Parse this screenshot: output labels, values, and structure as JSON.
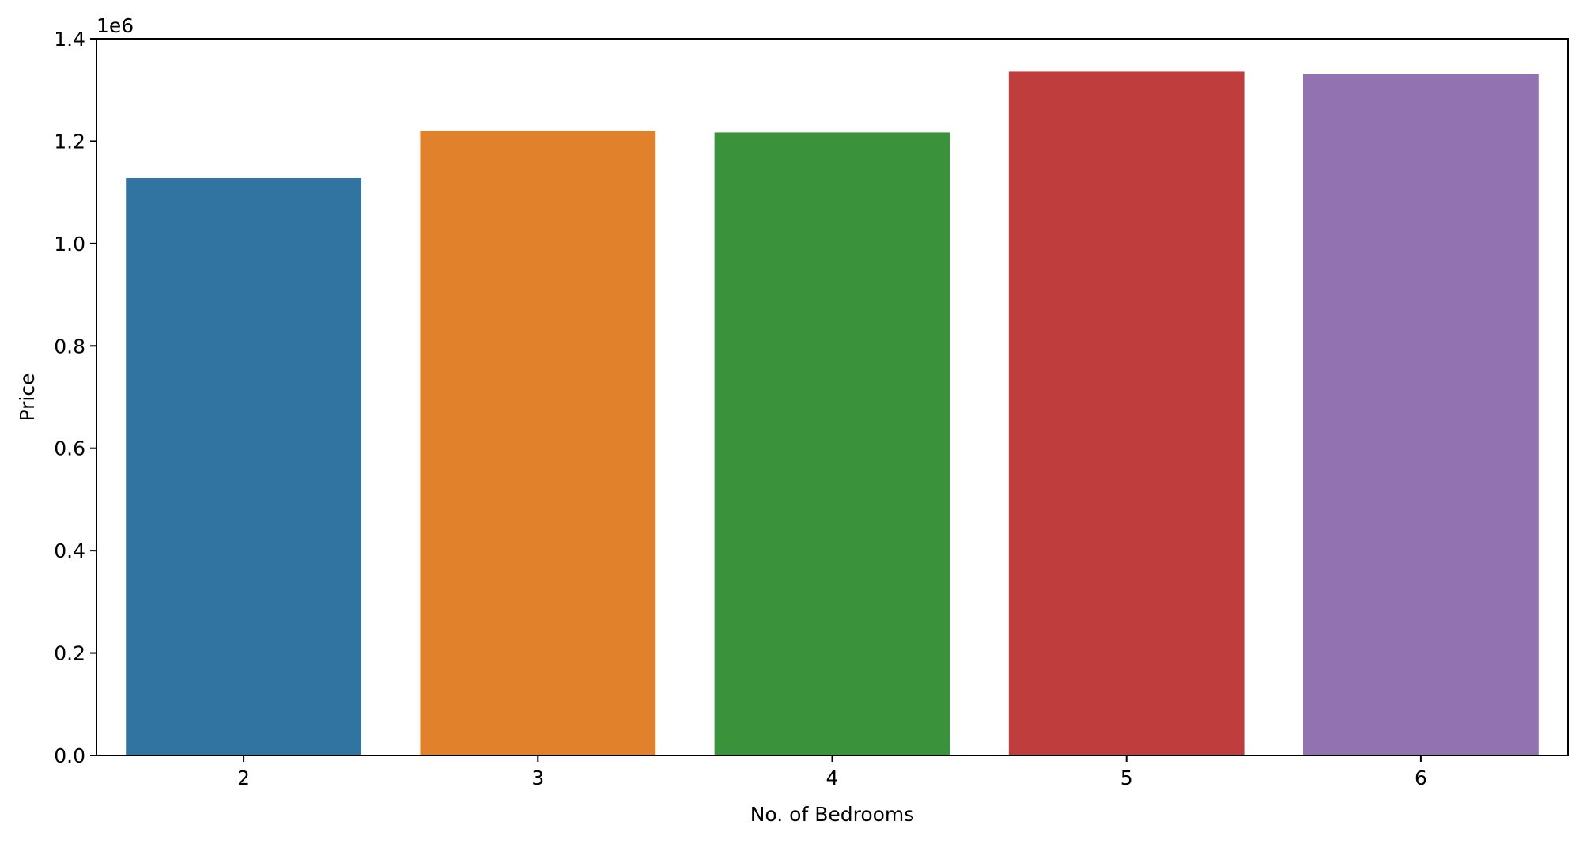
{
  "chart_data": {
    "type": "bar",
    "categories": [
      "2",
      "3",
      "4",
      "5",
      "6"
    ],
    "values": [
      1128000,
      1220000,
      1217000,
      1336000,
      1331000
    ],
    "colors": [
      "#3274a1",
      "#e1812c",
      "#3a923a",
      "#c03d3e",
      "#9372b2"
    ],
    "xlabel": "No. of Bedrooms",
    "ylabel": "Price",
    "ylim": [
      0,
      1400000
    ],
    "y_scale_divisor": 1000000,
    "y_offset_label": "1e6",
    "y_ticks": [
      0,
      200000,
      400000,
      600000,
      800000,
      1000000,
      1200000,
      1400000
    ],
    "y_tick_labels": [
      "0.0",
      "0.2",
      "0.4",
      "0.6",
      "0.8",
      "1.0",
      "1.2",
      "1.4"
    ],
    "grid": false
  }
}
